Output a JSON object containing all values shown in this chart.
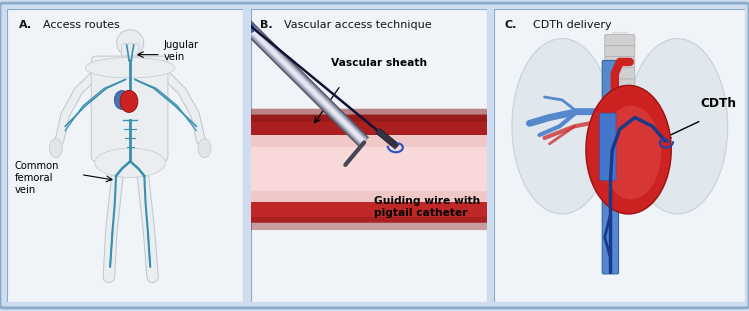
{
  "background_color": "#cddcee",
  "panel_bg": "#f0f4f8",
  "border_color": "#8aaac8",
  "outer_border": "#8aaac8",
  "title_a": "A. Access routes",
  "title_b": "B. Vascular access technique",
  "title_c": "C. CDTh delivery",
  "label_jugular": "Jugular\nvein",
  "label_femoral": "Common\nfemoral\nvein",
  "label_vascular_sheath": "Vascular sheath",
  "label_guiding_wire": "Guiding wire with\npigtail catheter",
  "label_cdth": "CDTh",
  "vein_color": "#3a8faf",
  "heart_red": "#cc3333",
  "lung_color": "#d5dfe8",
  "catheter_blue": "#2255aa",
  "sheath_gray": "#9999aa",
  "vessel_pink": "#f0c0c0",
  "vessel_dark_red": "#aa2020",
  "title_fontsize": 8.0,
  "label_fontsize": 7.2,
  "bold_letter_fontsize": 9
}
